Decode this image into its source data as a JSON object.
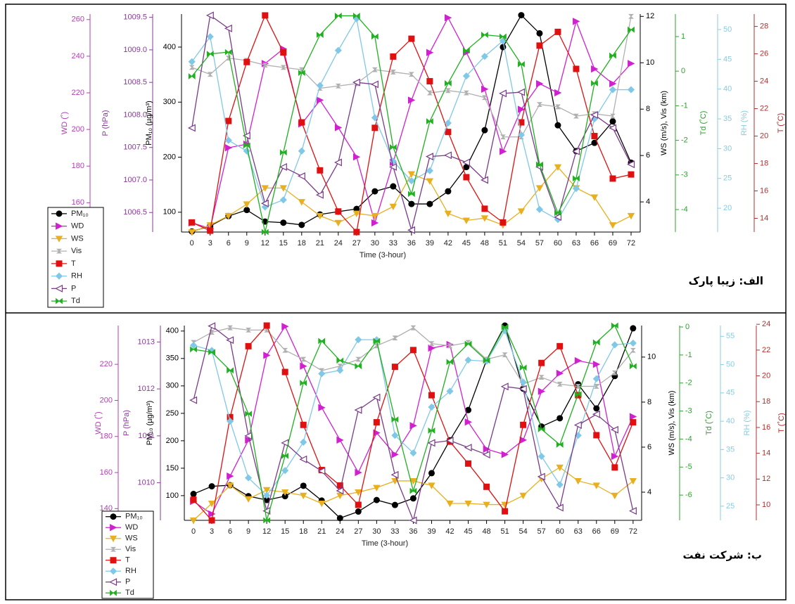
{
  "chart_data": [
    {
      "type": "line",
      "panel_label": "الف: زیبا پارک",
      "xlabel": "Time (3-hour)",
      "x": [
        0,
        3,
        6,
        9,
        12,
        15,
        18,
        21,
        24,
        27,
        30,
        33,
        36,
        39,
        42,
        45,
        48,
        51,
        54,
        57,
        60,
        63,
        66,
        69,
        72
      ],
      "xlim": [
        -1.7,
        73.5
      ],
      "xticks": [
        0,
        3,
        6,
        9,
        12,
        15,
        18,
        21,
        24,
        27,
        30,
        33,
        36,
        39,
        42,
        45,
        48,
        51,
        54,
        57,
        60,
        63,
        66,
        69,
        72
      ],
      "axes": {
        "wd": {
          "label": "WD (˚)",
          "color": "#b040b0",
          "ylim": [
            144,
            263
          ],
          "yticks": [
            160,
            180,
            200,
            220,
            240,
            260
          ]
        },
        "p": {
          "label": "P (hPa)",
          "color": "#8a3a9a",
          "ylim": [
            1006.2,
            1009.55
          ],
          "yticks": [
            1006.5,
            {
              "value": 1007,
              "label": "1007.0"
            },
            1007.5,
            {
              "value": 1008,
              "label": "1008.0"
            },
            1008.5,
            {
              "value": 1009,
              "label": "1009.0"
            },
            1009.5
          ]
        },
        "pm": {
          "label": "PM₁₀ (µg/m³)",
          "color": "#000000",
          "ylim": [
            64,
            460
          ],
          "yticks": [
            100,
            200,
            300,
            400
          ]
        },
        "ws": {
          "label": "WS (m/s), Vis (km)",
          "color": "#000000",
          "ylim": [
            2.7,
            12.1
          ],
          "yticks": [
            4,
            6,
            8,
            10,
            12
          ]
        },
        "td": {
          "label": "Td (˚C)",
          "color": "#30a030",
          "ylim": [
            -4.65,
            1.65
          ],
          "yticks": [
            -4,
            -3,
            -2,
            -1,
            0,
            1
          ]
        },
        "rh": {
          "label": "RH (%)",
          "color": "#88cce0",
          "ylim": [
            16,
            52.6
          ],
          "yticks": [
            20,
            25,
            30,
            35,
            40,
            45,
            50
          ]
        },
        "t": {
          "label": "T (˚C)",
          "color": "#b03030",
          "ylim": [
            13,
            28.9
          ],
          "yticks": [
            14,
            16,
            18,
            20,
            22,
            24,
            26,
            28
          ]
        }
      },
      "series": [
        {
          "name": "PM₁₀",
          "color": "#000000",
          "marker": "circle",
          "axis": "pm",
          "values": [
            65,
            75,
            93,
            104,
            83,
            81,
            77,
            96,
            101,
            106,
            138,
            147,
            115,
            115,
            138,
            182,
            249,
            400,
            458,
            425,
            258,
            211,
            226,
            265,
            190
          ]
        },
        {
          "name": "WD",
          "color": "#d020d0",
          "marker": "triangle-right",
          "axis": "wd",
          "values": [
            149,
            146,
            190,
            192,
            236,
            244,
            203,
            216,
            201,
            185,
            149,
            182,
            216,
            242,
            261,
            242,
            222,
            188,
            211,
            225,
            220,
            259,
            233,
            225,
            236
          ]
        },
        {
          "name": "WS",
          "color": "#e8b020",
          "marker": "triangle-down",
          "axis": "ws",
          "values": [
            2.7,
            3.0,
            3.4,
            3.9,
            4.6,
            4.6,
            4.0,
            3.4,
            3.1,
            3.5,
            3.4,
            3.8,
            5.2,
            4.9,
            3.5,
            3.2,
            3.3,
            3.0,
            3.6,
            4.6,
            5.5,
            4.6,
            4.2,
            3.0,
            3.4
          ]
        },
        {
          "name": "Vis",
          "color": "#b0b0b0",
          "marker": "hourglass",
          "axis": "ws",
          "values": [
            9.8,
            9.5,
            10.2,
            10.1,
            9.9,
            9.8,
            9.7,
            8.9,
            9.0,
            9.1,
            9.7,
            9.6,
            9.5,
            8.7,
            8.8,
            8.7,
            8.5,
            6.8,
            6.8,
            8.2,
            8.1,
            7.7,
            7.8,
            7.7,
            12
          ]
        },
        {
          "name": "T",
          "color": "#e01010",
          "marker": "square",
          "axis": "t",
          "values": [
            13.7,
            13.1,
            21.1,
            25.4,
            28.8,
            26.1,
            21,
            17.5,
            14.5,
            13,
            20.6,
            25.8,
            27.1,
            24,
            20.3,
            17,
            14.7,
            13.7,
            21,
            26.6,
            27.6,
            24.9,
            20,
            16.9,
            17.2
          ]
        },
        {
          "name": "RH",
          "color": "#80c8e8",
          "marker": "diamond",
          "axis": "rh",
          "values": [
            44.6,
            48.8,
            31.4,
            29.6,
            20.2,
            21.4,
            29.6,
            40.6,
            46.5,
            51.8,
            35.2,
            27.9,
            24.6,
            26.3,
            34.3,
            42.2,
            45.5,
            48.1,
            32.3,
            19.8,
            18.1,
            23.3,
            35,
            39.9,
            39.9
          ]
        },
        {
          "name": "P",
          "color": "#7a3a8a",
          "marker": "triangle-left-open",
          "axis": "p",
          "values": [
            1007.8,
            1009.53,
            1009.33,
            1007.68,
            1006.64,
            1007.2,
            1007.06,
            1006.77,
            1007.27,
            1008.5,
            1008.47,
            1007.2,
            1006.23,
            1007.36,
            1007.38,
            1007.27,
            1007.0,
            1008.33,
            1008.35,
            1007.2,
            1006.43,
            1007.44,
            1008.0,
            1007.8,
            1007.24
          ]
        },
        {
          "name": "Td",
          "color": "#20b020",
          "marker": "bowtie",
          "axis": "td",
          "values": [
            -0.15,
            0.5,
            0.55,
            -2.15,
            -4.65,
            -2.35,
            -0.05,
            1.05,
            1.6,
            1.6,
            1.0,
            -2.2,
            -3.55,
            -1.45,
            -0.35,
            0.6,
            1.05,
            1.0,
            0.2,
            -2.7,
            -4.1,
            -3.1,
            -0.35,
            0.45,
            1.2
          ]
        }
      ]
    },
    {
      "type": "line",
      "panel_label": "ب: شرکت نفت",
      "xlabel": "Time (3-hour)",
      "x": [
        0,
        3,
        6,
        9,
        12,
        15,
        18,
        21,
        24,
        27,
        30,
        33,
        36,
        39,
        42,
        45,
        48,
        51,
        54,
        57,
        60,
        63,
        66,
        69,
        72
      ],
      "xlim": [
        -1.5,
        73.4
      ],
      "xticks": [
        0,
        3,
        6,
        9,
        12,
        15,
        18,
        21,
        24,
        27,
        30,
        33,
        36,
        39,
        42,
        45,
        48,
        51,
        54,
        57,
        60,
        63,
        66,
        69,
        72
      ],
      "axes": {
        "wd": {
          "label": "WD (˚)",
          "color": "#b040b0",
          "ylim": [
            133.5,
            241.5
          ],
          "yticks": [
            140,
            160,
            180,
            200,
            220
          ]
        },
        "p": {
          "label": "P (hPa)",
          "color": "#8a3a9a",
          "ylim": [
            1009.2,
            1013.35
          ],
          "yticks": [
            1010,
            1011,
            1012,
            1013
          ]
        },
        "pm": {
          "label": "PM₁₀ (µg/m³)",
          "color": "#000000",
          "ylim": [
            55,
            410
          ],
          "yticks": [
            100,
            150,
            200,
            250,
            300,
            350,
            400
          ]
        },
        "ws": {
          "label": "WS (m/s), Vis (km)",
          "color": "#000000",
          "ylim": [
            2.75,
            11.4
          ],
          "yticks": [
            4,
            6,
            8,
            10
          ]
        },
        "td": {
          "label": "Td (˚C)",
          "color": "#30a030",
          "ylim": [
            -6.9,
            0.05
          ],
          "yticks": [
            -6,
            -5,
            -4,
            -3,
            -2,
            -1,
            0
          ]
        },
        "rh": {
          "label": "RH (%)",
          "color": "#88cce0",
          "ylim": [
            22.5,
            56.9
          ],
          "yticks": [
            25,
            30,
            35,
            40,
            45,
            50,
            55
          ]
        },
        "t": {
          "label": "T (˚C)",
          "color": "#b03030",
          "ylim": [
            8.8,
            23.9
          ],
          "yticks": [
            10,
            12,
            14,
            16,
            18,
            20,
            22,
            24
          ]
        }
      },
      "series": [
        {
          "name": "PM₁₀",
          "color": "#000000",
          "marker": "circle",
          "axis": "pm",
          "values": [
            103,
            117,
            119,
            99,
            92,
            99,
            118,
            91,
            59,
            71,
            92,
            83,
            95,
            141,
            201,
            256,
            347,
            410,
            295,
            226,
            241,
            303,
            259,
            318,
            405
          ]
        },
        {
          "name": "WD",
          "color": "#d020d0",
          "marker": "triangle-right",
          "axis": "wd",
          "values": [
            144,
            137,
            158,
            178,
            225,
            241,
            219,
            196,
            178,
            160,
            182,
            170,
            186,
            229,
            231,
            188,
            173,
            170,
            178,
            205,
            215,
            222,
            220,
            169,
            191
          ]
        },
        {
          "name": "WS",
          "color": "#e8b020",
          "marker": "triangle-down",
          "axis": "ws",
          "values": [
            2.75,
            3.5,
            4.3,
            3.7,
            4.1,
            4.0,
            3.85,
            3.5,
            3.85,
            4.0,
            4.2,
            4.5,
            4.5,
            4.3,
            3.5,
            3.5,
            3.45,
            3.45,
            3.85,
            4.6,
            5.1,
            4.5,
            4.3,
            3.85,
            4.5
          ]
        },
        {
          "name": "Vis",
          "color": "#b0b0b0",
          "marker": "hourglass",
          "axis": "ws",
          "values": [
            10.65,
            11.1,
            11.3,
            11.2,
            11.2,
            10.3,
            9.9,
            9.4,
            9.6,
            9.9,
            10.5,
            10.85,
            11.3,
            10.6,
            10.5,
            10.65,
            9.9,
            10.1,
            8.8,
            9.1,
            8.8,
            8.7,
            8.7,
            9.3,
            10.3
          ]
        },
        {
          "name": "T",
          "color": "#e01010",
          "marker": "square",
          "axis": "t",
          "values": [
            10.4,
            8.8,
            16.8,
            22.3,
            23.9,
            20.3,
            16.2,
            12.7,
            11.5,
            10.0,
            16.4,
            20.7,
            22,
            18.5,
            14.9,
            13.2,
            11.4,
            9.5,
            16.2,
            21,
            22.3,
            18.5,
            15.4,
            12.9,
            16.4
          ]
        },
        {
          "name": "RH",
          "color": "#80c8e8",
          "marker": "diamond",
          "axis": "rh",
          "values": [
            53.4,
            52.5,
            40,
            30,
            26.9,
            31.3,
            36.3,
            48.4,
            49,
            54.4,
            54.4,
            37.5,
            34.4,
            42.5,
            45.3,
            50.8,
            50.6,
            56,
            46.9,
            33.8,
            28.8,
            37.5,
            47.5,
            53.5,
            53.8
          ]
        },
        {
          "name": "P",
          "color": "#7a3a8a",
          "marker": "triangle-left-open",
          "axis": "p",
          "values": [
            1011.76,
            1013.34,
            1013.04,
            1011.0,
            1009.4,
            1010.85,
            1010.5,
            1010.25,
            1009.83,
            1011.55,
            1011.82,
            1010.17,
            1009.2,
            1010.85,
            1010.9,
            1010.75,
            1010.6,
            1012.05,
            1012.0,
            1010.13,
            1009.47,
            1011.23,
            1011.46,
            1011.13,
            1009.4
          ]
        },
        {
          "name": "Td",
          "color": "#20b020",
          "marker": "bowtie",
          "axis": "td",
          "values": [
            -0.8,
            -0.9,
            -1.55,
            -3.1,
            -6.9,
            -4.6,
            -2.0,
            -0.5,
            -1.2,
            -1.4,
            -0.5,
            -3.3,
            -5.85,
            -3.7,
            -1.25,
            -0.6,
            -1.2,
            0,
            -1.45,
            -3.65,
            -4.2,
            -2.4,
            -0.55,
            0.05,
            -1.4
          ]
        }
      ]
    }
  ]
}
